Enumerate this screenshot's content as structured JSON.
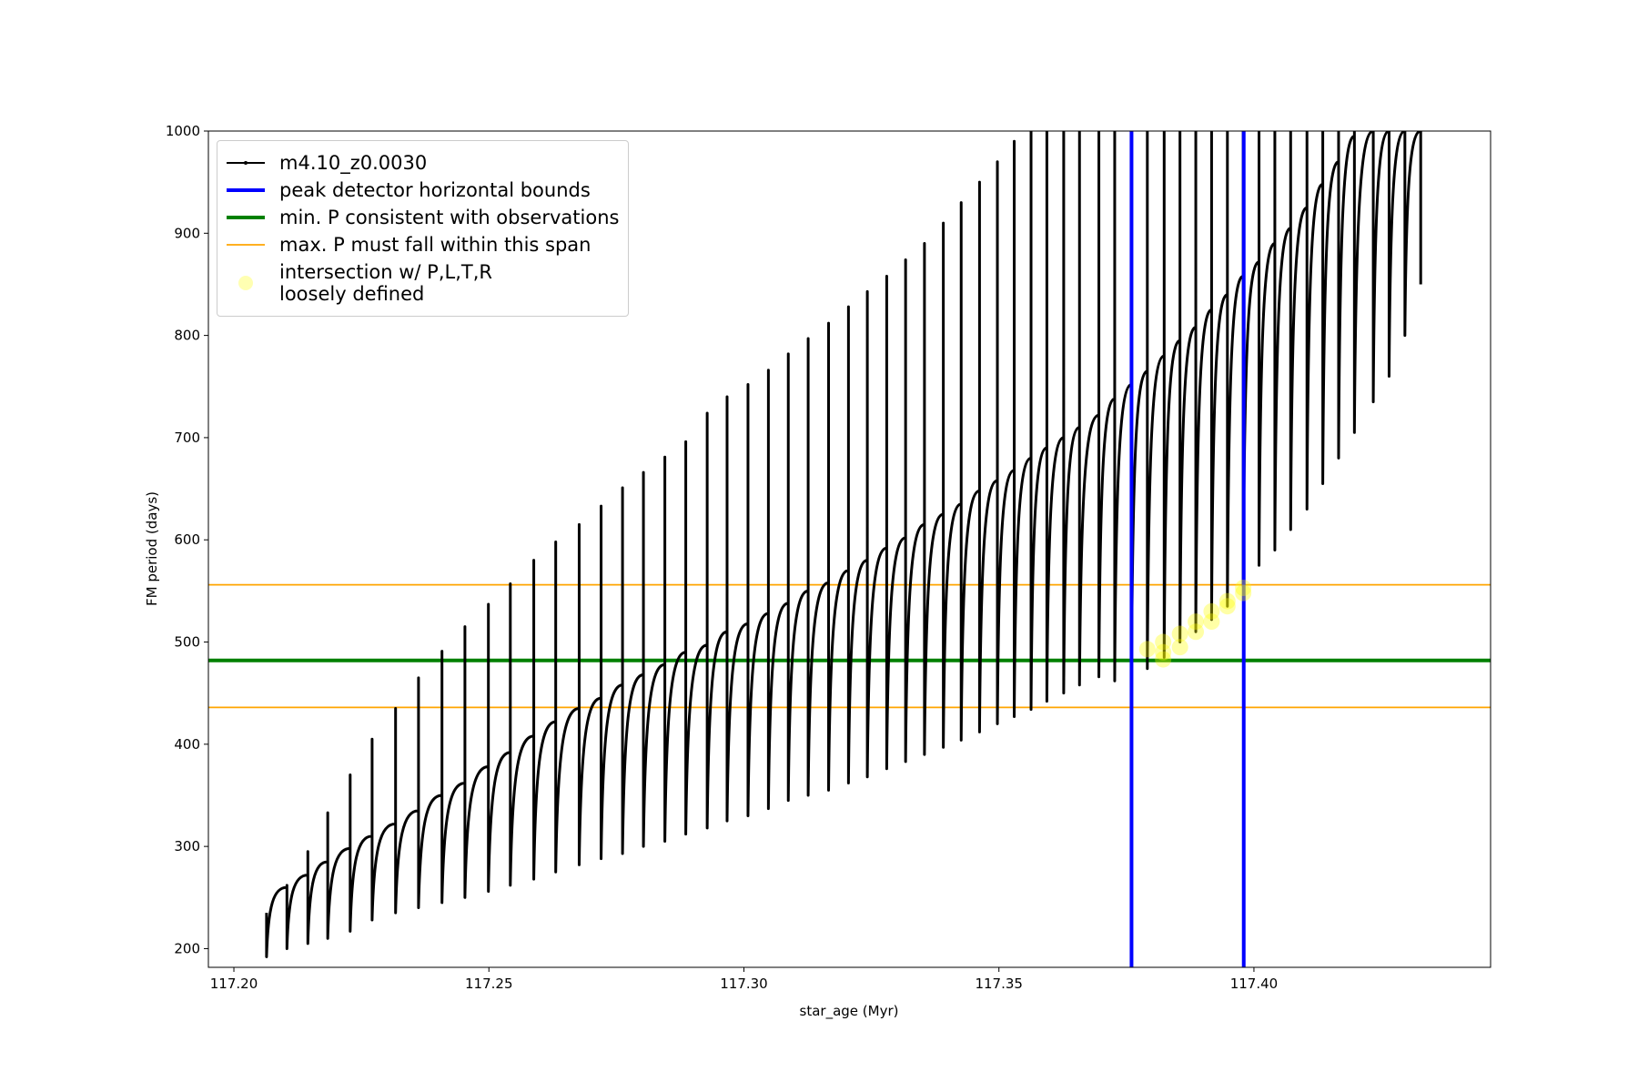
{
  "chart_data": {
    "type": "line",
    "xlabel": "star_age (Myr)",
    "ylabel": "FM period (days)",
    "xlim": [
      117.195,
      117.4464
    ],
    "ylim": [
      181.7,
      1000
    ],
    "xticks": [
      {
        "value": 117.2,
        "label": "117.20"
      },
      {
        "value": 117.25,
        "label": "117.25"
      },
      {
        "value": 117.3,
        "label": "117.30"
      },
      {
        "value": 117.35,
        "label": "117.35"
      },
      {
        "value": 117.4,
        "label": "117.40"
      }
    ],
    "yticks": [
      200,
      300,
      400,
      500,
      600,
      700,
      800,
      900,
      1000
    ],
    "legend": "upper left",
    "series": [
      {
        "name": "m4.10_z0.0030",
        "color": "#000000",
        "x": [
          117.2064,
          117.2064,
          117.2104,
          117.2104,
          117.2104,
          117.2145,
          117.2145,
          117.2145,
          117.2184,
          117.2184,
          117.2184,
          117.2228,
          117.2228,
          117.2228,
          117.2271,
          117.2271,
          117.2271,
          117.2317,
          117.2317,
          117.2317,
          117.2362,
          117.2362,
          117.2362,
          117.2408,
          117.2408,
          117.2408,
          117.2453,
          117.2453,
          117.2453,
          117.2499,
          117.2499,
          117.2499,
          117.2542,
          117.2542,
          117.2542,
          117.2588,
          117.2588,
          117.2588,
          117.2631,
          117.2631,
          117.2631,
          117.2677,
          117.2677,
          117.2677,
          117.272,
          117.272,
          117.272,
          117.2762,
          117.2762,
          117.2762,
          117.2803,
          117.2803,
          117.2803,
          117.2845,
          117.2845,
          117.2845,
          117.2886,
          117.2886,
          117.2886,
          117.2928,
          117.2928,
          117.2928,
          117.2967,
          117.2967,
          117.2967,
          117.3008,
          117.3008,
          117.3008,
          117.3048,
          117.3048,
          117.3048,
          117.3087,
          117.3087,
          117.3087,
          117.3126,
          117.3126,
          117.3126,
          117.3166,
          117.3166,
          117.3166,
          117.3205,
          117.3205,
          117.3205,
          117.3242,
          117.3242,
          117.3242,
          117.328,
          117.328,
          117.328,
          117.3317,
          117.3317,
          117.3317,
          117.3354,
          117.3354,
          117.3354,
          117.3391,
          117.3391,
          117.3391,
          117.3426,
          117.3426,
          117.3426,
          117.3462,
          117.3462,
          117.3462,
          117.3497,
          117.3497,
          117.3497,
          117.353,
          117.353,
          117.353,
          117.3563,
          117.3563,
          117.3563,
          117.3594,
          117.3594,
          117.3594,
          117.3627,
          117.3627,
          117.3627,
          117.3658,
          117.3658,
          117.3658,
          117.3696,
          117.3696,
          117.3696,
          117.3727,
          117.3727,
          117.3727,
          117.376,
          117.376,
          117.376,
          117.3791,
          117.3791,
          117.3791,
          117.3824,
          117.3824,
          117.3824,
          117.3855,
          117.3855,
          117.3855,
          117.3886,
          117.3886,
          117.3886,
          117.3917,
          117.3917,
          117.3917,
          117.3948,
          117.3948,
          117.3948,
          117.3979,
          117.3979,
          117.3979,
          117.401,
          117.401,
          117.401,
          117.4041,
          117.4041,
          117.4041,
          117.4072,
          117.4072,
          117.4072,
          117.4104,
          117.4104,
          117.4104,
          117.4135,
          117.4135,
          117.4135,
          117.4166,
          117.4166,
          117.4166,
          117.4197,
          117.4197,
          117.4197,
          117.4234,
          117.4234,
          117.4234,
          117.4265,
          117.4265,
          117.4265,
          117.4296,
          117.4296,
          117.4296,
          117.4327,
          117.4327,
          117.4327
        ],
        "values": [
          235,
          192,
          260,
          262,
          200,
          272,
          295,
          205,
          285,
          333,
          210,
          298,
          370,
          217,
          310,
          405,
          228,
          322,
          435,
          235,
          335,
          465,
          240,
          350,
          491,
          245,
          362,
          515,
          250,
          378,
          537,
          256,
          392,
          557,
          262,
          408,
          580,
          268,
          422,
          598,
          275,
          435,
          615,
          282,
          445,
          633,
          288,
          458,
          651,
          293,
          468,
          666,
          300,
          478,
          681,
          305,
          490,
          696,
          312,
          497,
          724,
          318,
          510,
          740,
          325,
          518,
          752,
          330,
          528,
          766,
          337,
          538,
          782,
          345,
          550,
          797,
          350,
          558,
          812,
          355,
          570,
          828,
          362,
          580,
          843,
          368,
          592,
          858,
          376,
          602,
          874,
          383,
          615,
          890,
          390,
          625,
          910,
          397,
          635,
          930,
          404,
          648,
          950,
          412,
          658,
          970,
          420,
          668,
          990,
          427,
          680,
          1000,
          434,
          690,
          1000,
          442,
          700,
          1000,
          450,
          710,
          1000,
          458,
          722,
          1000,
          466,
          738,
          1000,
          462,
          752,
          1000,
          468,
          765,
          1000,
          474,
          780,
          1000,
          485,
          795,
          1000,
          500,
          808,
          1000,
          510,
          825,
          1000,
          522,
          840,
          1000,
          535,
          858,
          1000,
          555,
          872,
          1000,
          575,
          890,
          1000,
          590,
          905,
          1000,
          610,
          925,
          1000,
          630,
          948,
          1000,
          655,
          970,
          1000,
          680,
          995,
          1000,
          705,
          1000,
          1000,
          735,
          1000,
          1000,
          760,
          1000,
          1000,
          800,
          1000,
          1000,
          850
        ]
      }
    ],
    "vlines": {
      "name": "peak detector horizontal bounds",
      "color": "#0000ff",
      "x": [
        117.376,
        117.398
      ]
    },
    "hlines": [
      {
        "name": "min. P consistent with observations",
        "color": "#008000",
        "values": [
          482
        ]
      },
      {
        "name": "max. P must fall within this span",
        "color": "#ffa500",
        "values": [
          556,
          436
        ]
      }
    ],
    "scatter": {
      "name": "intersection w/ P,L,T,R\nloosely defined",
      "color": "#ffff00",
      "x": [
        117.3791,
        117.3822,
        117.3822,
        117.3822,
        117.3855,
        117.3855,
        117.3886,
        117.3886,
        117.3917,
        117.3917,
        117.3948,
        117.3948,
        117.3979,
        117.3979
      ],
      "values": [
        493,
        483,
        490,
        500,
        495,
        508,
        510,
        520,
        520,
        530,
        535,
        540,
        548,
        553
      ]
    }
  }
}
